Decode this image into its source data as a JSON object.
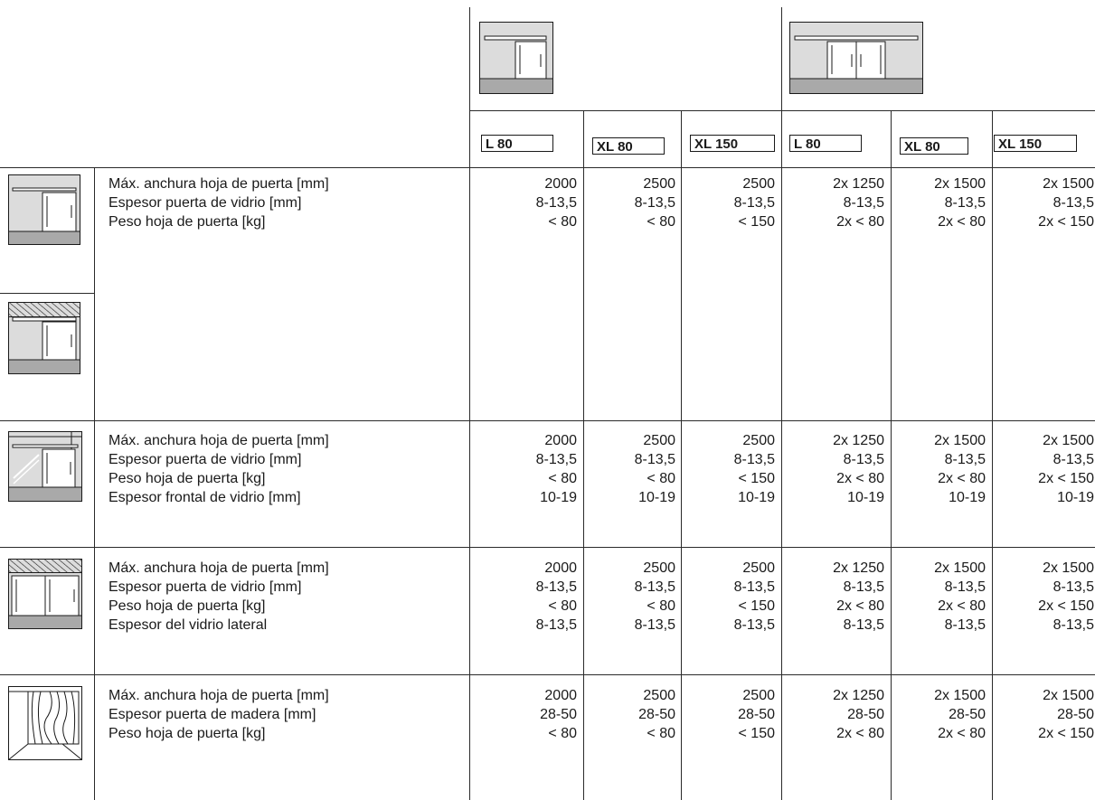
{
  "models": [
    {
      "name": "L 80"
    },
    {
      "name": "XL 80"
    },
    {
      "name": "XL 150"
    },
    {
      "name": "L 80"
    },
    {
      "name": "XL 80"
    },
    {
      "name": "XL 150"
    }
  ],
  "sections": [
    {
      "labels": [
        "Máx. anchura hoja de puerta [mm]",
        "Espesor puerta de vidrio [mm]",
        "Peso hoja de puerta [kg]"
      ],
      "values": [
        [
          "2000",
          "8-13,5",
          "< 80"
        ],
        [
          "2500",
          "8-13,5",
          "< 80"
        ],
        [
          "2500",
          "8-13,5",
          "< 150"
        ],
        [
          "2x 1250",
          "8-13,5",
          "2x < 80"
        ],
        [
          "2x 1500",
          "8-13,5",
          "2x < 80"
        ],
        [
          "2x 1500",
          "8-13,5",
          "2x < 150"
        ]
      ]
    },
    {
      "labels": [
        "Máx. anchura hoja de puerta [mm]",
        "Espesor puerta de vidrio [mm]",
        "Peso hoja de puerta [kg]",
        "Espesor frontal de vidrio [mm]"
      ],
      "values": [
        [
          "2000",
          "8-13,5",
          "< 80",
          "10-19"
        ],
        [
          "2500",
          "8-13,5",
          "< 80",
          "10-19"
        ],
        [
          "2500",
          "8-13,5",
          "< 150",
          "10-19"
        ],
        [
          "2x 1250",
          "8-13,5",
          "2x < 80",
          "10-19"
        ],
        [
          "2x 1500",
          "8-13,5",
          "2x < 80",
          "10-19"
        ],
        [
          "2x 1500",
          "8-13,5",
          "2x < 150",
          "10-19"
        ]
      ]
    },
    {
      "labels": [
        "Máx. anchura hoja de puerta [mm]",
        "Espesor puerta de vidrio [mm]",
        "Peso hoja de puerta [kg]",
        "Espesor del vidrio lateral"
      ],
      "values": [
        [
          "2000",
          "8-13,5",
          "< 80",
          "8-13,5"
        ],
        [
          "2500",
          "8-13,5",
          "< 80",
          "8-13,5"
        ],
        [
          "2500",
          "8-13,5",
          "< 150",
          "8-13,5"
        ],
        [
          "2x 1250",
          "8-13,5",
          "2x < 80",
          "8-13,5"
        ],
        [
          "2x 1500",
          "8-13,5",
          "2x < 80",
          "8-13,5"
        ],
        [
          "2x 1500",
          "8-13,5",
          "2x < 150",
          "8-13,5"
        ]
      ]
    },
    {
      "labels": [
        "Máx. anchura hoja de puerta [mm]",
        "Espesor puerta de madera [mm]",
        "Peso hoja de puerta [kg]"
      ],
      "values": [
        [
          "2000",
          "28-50",
          "< 80"
        ],
        [
          "2500",
          "28-50",
          "< 80"
        ],
        [
          "2500",
          "28-50",
          "< 150"
        ],
        [
          "2x 1250",
          "28-50",
          "2x < 80"
        ],
        [
          "2x 1500",
          "28-50",
          "2x < 80"
        ],
        [
          "2x 1500",
          "28-50",
          "2x < 150"
        ]
      ]
    }
  ]
}
